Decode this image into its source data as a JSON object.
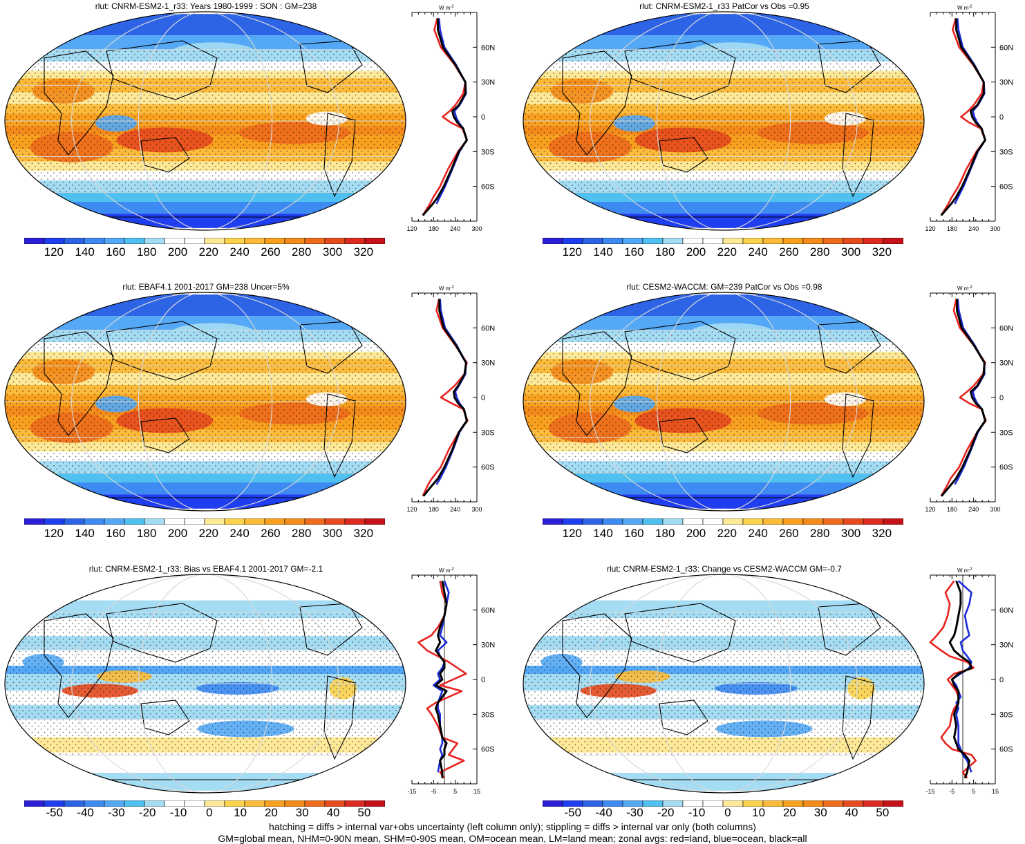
{
  "colors": {
    "land": "#e8231f",
    "ocean": "#1a2bd9",
    "all": "#000000",
    "abs_scale": [
      "#2b1ed6",
      "#1f3ef0",
      "#2d64e6",
      "#3d8af2",
      "#54a8f5",
      "#4fc0f0",
      "#a4dcf4",
      "#ffffff",
      "#ffffff",
      "#fde998",
      "#fdd24d",
      "#fcbb3a",
      "#f9a11f",
      "#f48b1a",
      "#ee6c1c",
      "#e64a1e",
      "#dc2a20",
      "#c41218"
    ],
    "diff_scale": [
      "#2b1ed6",
      "#1f3ef0",
      "#2d64e6",
      "#3d8af2",
      "#54a8f5",
      "#4fc0f0",
      "#a4dcf4",
      "#ffffff",
      "#ffffff",
      "#fde998",
      "#fdd24d",
      "#fcbb3a",
      "#f9a11f",
      "#f48b1a",
      "#ee6c1c",
      "#e64a1e",
      "#dc2a20",
      "#c41218"
    ]
  },
  "abs_colorbar_labels": [
    "120",
    "140",
    "160",
    "180",
    "200",
    "220",
    "240",
    "260",
    "280",
    "300",
    "320"
  ],
  "diff_colorbar_labels": [
    "-50",
    "-40",
    "-30",
    "-20",
    "-10",
    "0",
    "10",
    "20",
    "30",
    "40",
    "50"
  ],
  "zonal_abs_ticks": [
    "120",
    "180",
    "240",
    "300"
  ],
  "zonal_diff_ticks": [
    "-15",
    "-5",
    "5",
    "15"
  ],
  "lat_labels": [
    "60N",
    "30N",
    "0",
    "30S",
    "60S"
  ],
  "unit_label": "W m",
  "unit_exp": "-2",
  "panels": [
    {
      "title": "rlut: CNRM-ESM2-1_r33: Years 1980-1999 : SON : GM=238",
      "scale": "abs"
    },
    {
      "title": "rlut: CNRM-ESM2-1_r33 PatCor vs Obs =0.95",
      "scale": "abs"
    },
    {
      "title": "rlut: EBAF4.1 2001-2017 GM=238 Uncer=5%",
      "scale": "abs"
    },
    {
      "title": "rlut: CESM2-WACCM: GM=239 PatCor vs Obs =0.98",
      "scale": "abs"
    },
    {
      "title": "rlut: CNRM-ESM2-1_r33: Bias vs EBAF4.1 2001-2017  GM=-2.1",
      "scale": "diff"
    },
    {
      "title": "rlut: CNRM-ESM2-1_r33: Change vs CESM2-WACCM GM=-0.7",
      "scale": "diff"
    }
  ],
  "footer": {
    "line1": "hatching = diffs > internal var+obs uncertainty (left column only); stippling = diffs > internal var only (both columns)",
    "line2": "GM=global mean, NHM=0-90N mean, SHM=0-90S mean, OM=ocean mean, LM=land mean; zonal avgs: red=land, blue=ocean, black=all"
  },
  "chart_data": [
    {
      "type": "line",
      "title": "rlut: CNRM-ESM2-1_r33: Years 1980-1999 : SON : GM=238",
      "xlabel": "W m-2",
      "xlim": [
        120,
        300
      ],
      "ylim": [
        -90,
        90
      ],
      "y": [
        85,
        75,
        60,
        45,
        30,
        20,
        10,
        5,
        0,
        -5,
        -10,
        -20,
        -30,
        -45,
        -60,
        -70,
        -75,
        -85
      ],
      "series": [
        {
          "name": "red=land",
          "values": [
            190,
            182,
            200,
            238,
            268,
            262,
            240,
            225,
            205,
            228,
            260,
            272,
            248,
            220,
            198,
            178,
            170,
            150
          ]
        },
        {
          "name": "blue=ocean",
          "values": [
            195,
            198,
            210,
            242,
            268,
            270,
            252,
            238,
            242,
            250,
            262,
            272,
            252,
            232,
            212,
            196,
            188,
            null
          ]
        },
        {
          "name": "black=all",
          "values": [
            192,
            192,
            206,
            240,
            268,
            268,
            250,
            232,
            236,
            246,
            262,
            272,
            250,
            230,
            208,
            190,
            178,
            150
          ]
        }
      ]
    },
    {
      "type": "line",
      "title": "rlut: CNRM-ESM2-1_r33 PatCor vs Obs =0.95",
      "xlabel": "W m-2",
      "xlim": [
        120,
        300
      ],
      "ylim": [
        -90,
        90
      ],
      "y": [
        85,
        75,
        60,
        45,
        30,
        20,
        10,
        5,
        0,
        -5,
        -10,
        -20,
        -30,
        -45,
        -60,
        -70,
        -75,
        -85
      ],
      "series": [
        {
          "name": "red=land",
          "values": [
            190,
            182,
            200,
            238,
            268,
            262,
            240,
            225,
            205,
            228,
            260,
            272,
            248,
            220,
            198,
            178,
            170,
            150
          ]
        },
        {
          "name": "blue=ocean",
          "values": [
            195,
            198,
            210,
            242,
            268,
            270,
            252,
            238,
            242,
            250,
            262,
            272,
            252,
            232,
            212,
            196,
            188,
            null
          ]
        },
        {
          "name": "black=all",
          "values": [
            192,
            192,
            206,
            240,
            268,
            268,
            250,
            232,
            236,
            246,
            262,
            272,
            250,
            230,
            208,
            190,
            178,
            150
          ]
        }
      ]
    },
    {
      "type": "line",
      "title": "rlut: EBAF4.1 2001-2017 GM=238 Uncer=5%",
      "xlabel": "W m-2",
      "xlim": [
        120,
        300
      ],
      "ylim": [
        -90,
        90
      ],
      "y": [
        85,
        75,
        60,
        45,
        30,
        20,
        10,
        5,
        0,
        -5,
        -10,
        -20,
        -30,
        -45,
        -60,
        -70,
        -75,
        -85
      ],
      "series": [
        {
          "name": "red=land",
          "values": [
            195,
            188,
            205,
            240,
            272,
            265,
            238,
            220,
            200,
            230,
            262,
            274,
            250,
            222,
            200,
            175,
            165,
            150
          ]
        },
        {
          "name": "blue=ocean",
          "values": [
            198,
            200,
            212,
            244,
            270,
            268,
            250,
            240,
            244,
            252,
            264,
            272,
            252,
            234,
            214,
            198,
            188,
            null
          ]
        },
        {
          "name": "black=all",
          "values": [
            196,
            196,
            208,
            242,
            270,
            266,
            248,
            236,
            238,
            248,
            264,
            272,
            250,
            232,
            210,
            192,
            178,
            152
          ]
        }
      ]
    },
    {
      "type": "line",
      "title": "rlut: CESM2-WACCM: GM=239 PatCor vs Obs =0.98",
      "xlabel": "W m-2",
      "xlim": [
        120,
        300
      ],
      "ylim": [
        -90,
        90
      ],
      "y": [
        85,
        75,
        60,
        45,
        30,
        20,
        10,
        5,
        0,
        -5,
        -10,
        -20,
        -30,
        -45,
        -60,
        -70,
        -75,
        -85
      ],
      "series": [
        {
          "name": "red=land",
          "values": [
            192,
            185,
            202,
            240,
            272,
            266,
            240,
            222,
            202,
            228,
            262,
            274,
            250,
            222,
            200,
            176,
            168,
            150
          ]
        },
        {
          "name": "blue=ocean",
          "values": [
            196,
            199,
            211,
            243,
            270,
            270,
            252,
            238,
            242,
            250,
            263,
            272,
            252,
            233,
            213,
            197,
            188,
            null
          ]
        },
        {
          "name": "black=all",
          "values": [
            194,
            194,
            207,
            241,
            270,
            268,
            250,
            232,
            236,
            246,
            263,
            272,
            250,
            231,
            209,
            191,
            178,
            151
          ]
        }
      ]
    },
    {
      "type": "line",
      "title": "rlut: CNRM-ESM2-1_r33: Bias vs EBAF4.1 2001-2017  GM=-2.1",
      "xlabel": "W m-2",
      "xlim": [
        -15,
        15
      ],
      "ylim": [
        -90,
        90
      ],
      "y": [
        85,
        75,
        65,
        55,
        45,
        38,
        32,
        25,
        20,
        15,
        10,
        5,
        0,
        -5,
        -10,
        -15,
        -20,
        -25,
        -30,
        -40,
        -50,
        -55,
        -60,
        -65,
        -70,
        -80,
        -85
      ],
      "series": [
        {
          "name": "red=land",
          "values": [
            -2,
            -1,
            1,
            0,
            -3,
            -6,
            -12,
            -8,
            -3,
            2,
            6,
            10,
            4,
            -2,
            8,
            2,
            -4,
            -8,
            -6,
            -3,
            -1,
            6,
            4,
            2,
            9,
            -2,
            0
          ]
        },
        {
          "name": "blue=ocean",
          "values": [
            0,
            2,
            1,
            0,
            -1,
            -2,
            1,
            -3,
            -2,
            0,
            -1,
            -3,
            -2,
            -5,
            -1,
            -2,
            -3,
            -3,
            -2,
            -2,
            -1,
            -1,
            -2,
            -1,
            -2,
            -3,
            null
          ]
        },
        {
          "name": "black=all",
          "values": [
            -1,
            0,
            1,
            0,
            -2,
            -3,
            -2,
            -4,
            -2,
            0,
            0,
            -2,
            -1,
            -4,
            1,
            -1,
            -3,
            -4,
            -3,
            -2,
            -1,
            1,
            0,
            0,
            -2,
            -1,
            -1
          ]
        }
      ]
    },
    {
      "type": "line",
      "title": "rlut: CNRM-ESM2-1_r33: Change vs CESM2-WACCM GM=-0.7",
      "xlabel": "W m-2",
      "xlim": [
        -15,
        15
      ],
      "ylim": [
        -90,
        90
      ],
      "y": [
        85,
        75,
        65,
        55,
        45,
        38,
        32,
        25,
        20,
        15,
        10,
        5,
        0,
        -5,
        -10,
        -15,
        -20,
        -25,
        -30,
        -40,
        -50,
        -55,
        -60,
        -65,
        -70,
        -80,
        -85
      ],
      "series": [
        {
          "name": "red=land",
          "values": [
            -4,
            -8,
            -6,
            -7,
            -9,
            -12,
            -15,
            -10,
            -6,
            2,
            5,
            -4,
            -7,
            -5,
            -3,
            -2,
            -2,
            -4,
            -5,
            -6,
            -10,
            -8,
            -5,
            4,
            6,
            0,
            2
          ]
        },
        {
          "name": "blue=ocean",
          "values": [
            -2,
            4,
            3,
            1,
            2,
            3,
            -1,
            0,
            2,
            4,
            3,
            -1,
            -5,
            -3,
            -2,
            -1,
            -3,
            -2,
            -3,
            -2,
            -2,
            -2,
            -1,
            0,
            2,
            4,
            null
          ]
        },
        {
          "name": "black=all",
          "values": [
            -3,
            -1,
            -1,
            -2,
            -3,
            -4,
            -6,
            -4,
            -1,
            3,
            4,
            -2,
            -5,
            -4,
            -2,
            -2,
            -2,
            -3,
            -4,
            -3,
            -4,
            -3,
            -2,
            1,
            3,
            2,
            1
          ]
        }
      ]
    }
  ]
}
